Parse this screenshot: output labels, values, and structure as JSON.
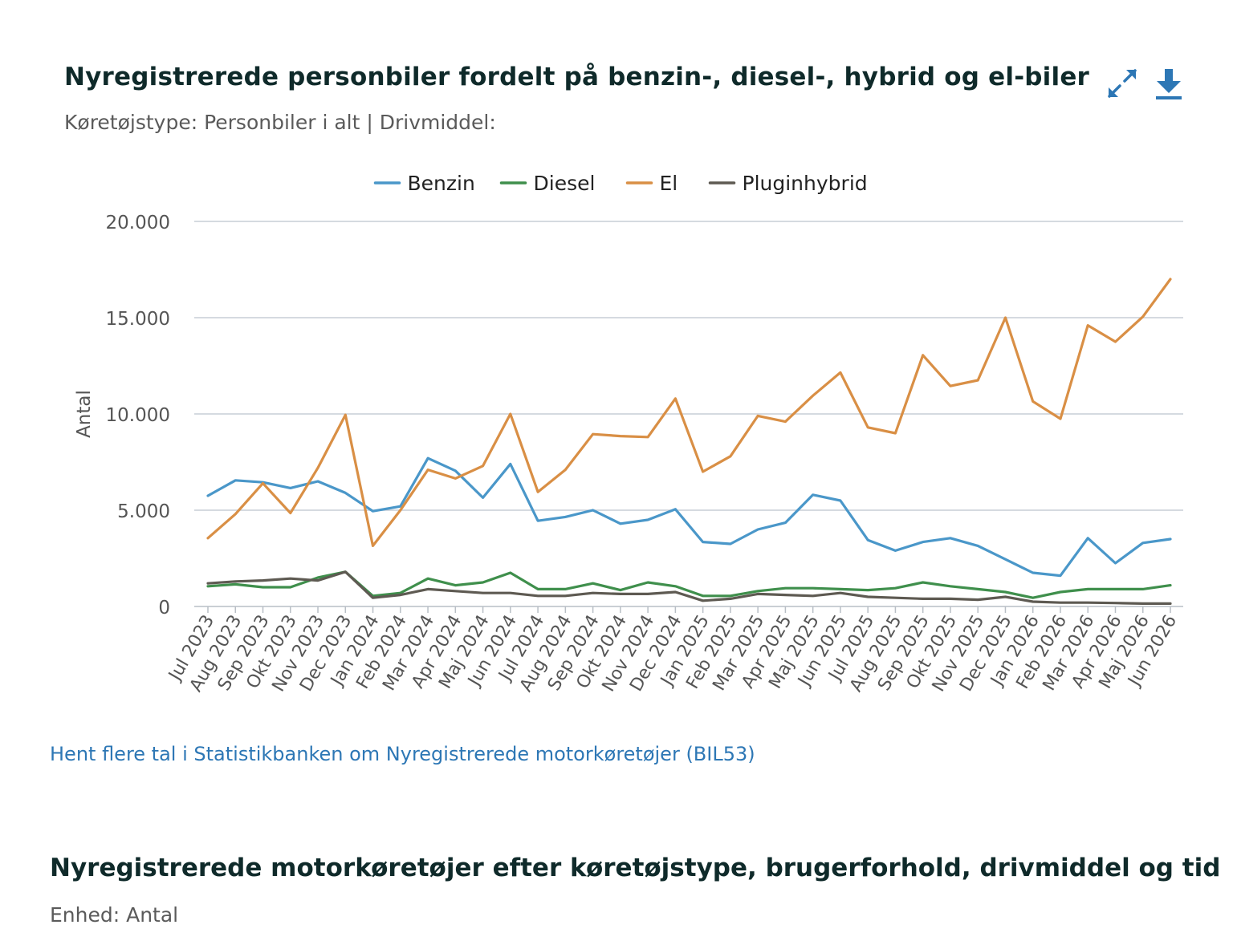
{
  "chart_card": {
    "title": "Nyregistrerede personbiler fordelt på benzin-, diesel-, hybrid og el-biler",
    "subtitle": "Køretøjstype: Personbiler i alt | Drivmiddel:",
    "source_link": "Hent flere tal i Statistikbanken om Nyregistrerede motorkøretøjer (BIL53)",
    "icons": {
      "expand": "expand-icon",
      "download": "download-icon"
    },
    "accent_color": "#2d77b5"
  },
  "table_section": {
    "title": "Nyregistrerede motorkøretøjer efter køretøjstype, brugerforhold, drivmiddel og tid",
    "unit": "Enhed: Antal"
  },
  "chart_data": {
    "type": "line",
    "ylabel": "Antal",
    "xlabel": "",
    "ylim": [
      0,
      20000
    ],
    "yticks": [
      0,
      5000,
      10000,
      15000,
      20000
    ],
    "ytick_labels": [
      "0",
      "5.000",
      "10.000",
      "15.000",
      "20.000"
    ],
    "grid": true,
    "legend_position": "top-center",
    "categories": [
      "Jul 2023",
      "Aug 2023",
      "Sep 2023",
      "Okt 2023",
      "Nov 2023",
      "Dec 2023",
      "Jan 2024",
      "Feb 2024",
      "Mar 2024",
      "Apr 2024",
      "Maj 2024",
      "Jun 2024",
      "Jul 2024",
      "Aug 2024",
      "Sep 2024",
      "Okt 2024",
      "Nov 2024",
      "Dec 2024",
      "Jan 2025",
      "Feb 2025",
      "Mar 2025",
      "Apr 2025",
      "Maj 2025",
      "Jun 2025",
      "Jul 2025",
      "Aug 2025",
      "Sep 2025",
      "Okt 2025",
      "Nov 2025",
      "Dec 2025",
      "Jan 2026",
      "Feb 2026",
      "Mar 2026",
      "Apr 2026",
      "Maj 2026",
      "Jun 2026"
    ],
    "series": [
      {
        "name": "Benzin",
        "color": "#4a97c9",
        "values": [
          5750,
          6550,
          6450,
          6150,
          6500,
          5900,
          4950,
          5200,
          7700,
          7050,
          5650,
          7400,
          4450,
          4650,
          5000,
          4300,
          4500,
          5050,
          3350,
          3250,
          4000,
          4350,
          5800,
          5500,
          3450,
          2900,
          3350,
          3550,
          3150,
          2450,
          1750,
          1600,
          3550,
          2250,
          3300,
          3500
        ]
      },
      {
        "name": "Diesel",
        "color": "#3f8f4c",
        "values": [
          1050,
          1150,
          1000,
          1000,
          1500,
          1800,
          550,
          700,
          1450,
          1100,
          1250,
          1750,
          900,
          900,
          1200,
          850,
          1250,
          1050,
          550,
          550,
          800,
          950,
          950,
          900,
          850,
          950,
          1250,
          1050,
          900,
          750,
          450,
          750,
          900,
          900,
          900,
          1100
        ]
      },
      {
        "name": "El",
        "color": "#d98f45",
        "values": [
          3550,
          4800,
          6400,
          4850,
          7200,
          9950,
          3150,
          5000,
          7100,
          6650,
          7300,
          10000,
          5950,
          7100,
          8950,
          8850,
          8800,
          10800,
          7000,
          7800,
          9900,
          9600,
          10950,
          12150,
          9300,
          9000,
          13050,
          11450,
          11750,
          15000,
          10650,
          9750,
          14600,
          13750,
          15050,
          17000
        ]
      },
      {
        "name": "Pluginhybrid",
        "color": "#5e5a52",
        "values": [
          1200,
          1300,
          1350,
          1450,
          1350,
          1800,
          450,
          600,
          900,
          800,
          700,
          700,
          550,
          550,
          700,
          650,
          650,
          750,
          300,
          400,
          650,
          600,
          550,
          700,
          500,
          450,
          400,
          400,
          350,
          500,
          250,
          200,
          200,
          180,
          150,
          150
        ]
      }
    ]
  }
}
